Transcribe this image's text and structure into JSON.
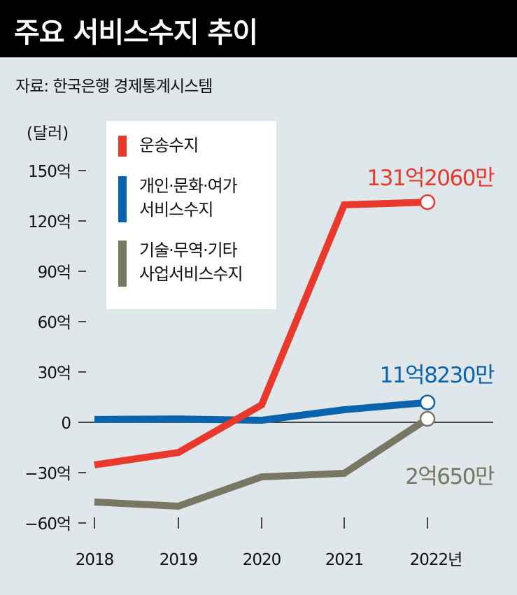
{
  "header": {
    "title": "주요 서비스수지 추이"
  },
  "source": "자료: 한국은행 경제통계시스템",
  "chart_data": {
    "type": "line",
    "unit_label": "(달러)",
    "x": [
      "2018",
      "2019",
      "2020",
      "2021",
      "2022년"
    ],
    "ylim": [
      -60,
      150
    ],
    "yticks": [
      150,
      120,
      90,
      60,
      30,
      0,
      -30,
      -60
    ],
    "ytick_labels": [
      "150억",
      "120억",
      "90억",
      "60억",
      "30억",
      "0",
      "−30억",
      "−60억"
    ],
    "legend_placement": "top-left",
    "series": [
      {
        "name": "운송수지",
        "color": "#e8392c",
        "values": [
          -25.4,
          -18,
          10.4,
          129.6,
          131.206
        ],
        "end_label": "131억2060만"
      },
      {
        "name": "개인·문화·여가\n서비스수지",
        "color": "#0a64ad",
        "values": [
          1.7,
          2,
          1.2,
          7.5,
          11.823
        ],
        "end_label": "11억8230만"
      },
      {
        "name": "기술·무역·기타\n사업서비스수지",
        "color": "#7a7664",
        "values": [
          -47.5,
          -50,
          -32.5,
          -30.4,
          2.065
        ],
        "end_label": "2억650만"
      }
    ]
  }
}
